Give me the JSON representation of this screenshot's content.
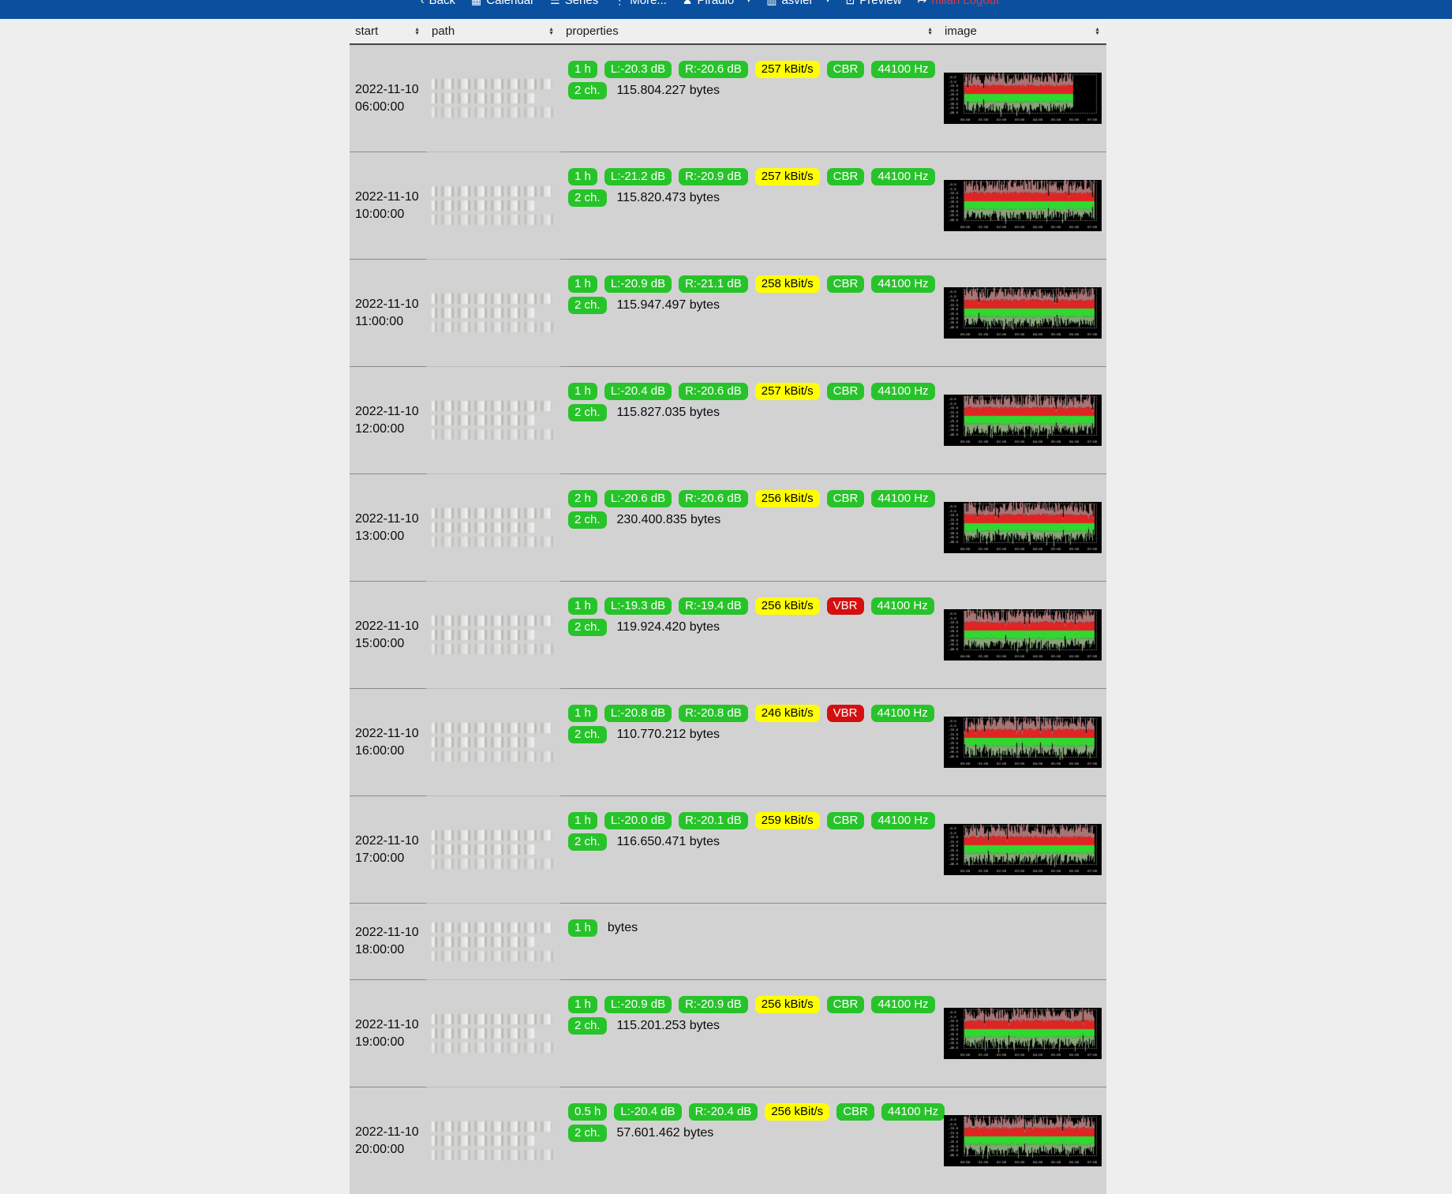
{
  "navbar": {
    "items": [
      {
        "label": "Back",
        "icon": "back-arrow",
        "glyph": "‹"
      },
      {
        "label": "Calendar",
        "icon": "calendar",
        "glyph": "▦"
      },
      {
        "label": "Series",
        "icon": "series-list",
        "glyph": "☰"
      },
      {
        "label": "More...",
        "icon": "more-dots",
        "glyph": "⋮"
      },
      {
        "label": "Piradio",
        "icon": "user",
        "glyph": "♟",
        "caret": true
      },
      {
        "label": "asvier",
        "icon": "server",
        "glyph": "▥",
        "caret": true
      },
      {
        "label": "Preview",
        "icon": "preview",
        "glyph": "⊡"
      },
      {
        "label": "milan Logout",
        "icon": "logout",
        "glyph": "↦",
        "danger": true
      }
    ]
  },
  "table": {
    "columns": [
      {
        "label": "start",
        "sortable": true
      },
      {
        "label": "path",
        "sortable": true
      },
      {
        "label": "properties",
        "sortable": true
      },
      {
        "label": "image",
        "sortable": true
      }
    ],
    "rows": [
      {
        "start_date": "2022-11-10",
        "start_time": "06:00:00",
        "path_redacted": true,
        "duration": "1 h",
        "level_left": "L:-20.3 dB",
        "level_right": "R:-20.6 dB",
        "bitrate": "257 kBit/s",
        "mode": "CBR",
        "samplerate": "44100 Hz",
        "channels": "2 ch.",
        "bytes": "115.804.227 bytes",
        "has_image": true,
        "image_kind": "stereo-level-waveform",
        "waveform_fill": 0.82
      },
      {
        "start_date": "2022-11-10",
        "start_time": "10:00:00",
        "path_redacted": true,
        "duration": "1 h",
        "level_left": "L:-21.2 dB",
        "level_right": "R:-20.9 dB",
        "bitrate": "257 kBit/s",
        "mode": "CBR",
        "samplerate": "44100 Hz",
        "channels": "2 ch.",
        "bytes": "115.820.473 bytes",
        "has_image": true,
        "image_kind": "stereo-level-waveform",
        "waveform_fill": 0.98
      },
      {
        "start_date": "2022-11-10",
        "start_time": "11:00:00",
        "path_redacted": true,
        "duration": "1 h",
        "level_left": "L:-20.9 dB",
        "level_right": "R:-21.1 dB",
        "bitrate": "258 kBit/s",
        "mode": "CBR",
        "samplerate": "44100 Hz",
        "channels": "2 ch.",
        "bytes": "115.947.497 bytes",
        "has_image": true,
        "image_kind": "stereo-level-waveform",
        "waveform_fill": 0.98
      },
      {
        "start_date": "2022-11-10",
        "start_time": "12:00:00",
        "path_redacted": true,
        "duration": "1 h",
        "level_left": "L:-20.4 dB",
        "level_right": "R:-20.6 dB",
        "bitrate": "257 kBit/s",
        "mode": "CBR",
        "samplerate": "44100 Hz",
        "channels": "2 ch.",
        "bytes": "115.827.035 bytes",
        "has_image": true,
        "image_kind": "stereo-level-waveform",
        "waveform_fill": 0.98
      },
      {
        "start_date": "2022-11-10",
        "start_time": "13:00:00",
        "path_redacted": true,
        "duration": "2 h",
        "level_left": "L:-20.6 dB",
        "level_right": "R:-20.6 dB",
        "bitrate": "256 kBit/s",
        "mode": "CBR",
        "samplerate": "44100 Hz",
        "channels": "2 ch.",
        "bytes": "230.400.835 bytes",
        "has_image": true,
        "image_kind": "stereo-level-waveform",
        "waveform_fill": 0.98
      },
      {
        "start_date": "2022-11-10",
        "start_time": "15:00:00",
        "path_redacted": true,
        "duration": "1 h",
        "level_left": "L:-19.3 dB",
        "level_right": "R:-19.4 dB",
        "bitrate": "256 kBit/s",
        "mode": "VBR",
        "samplerate": "44100 Hz",
        "channels": "2 ch.",
        "bytes": "119.924.420 bytes",
        "has_image": true,
        "image_kind": "stereo-level-waveform",
        "waveform_fill": 0.98
      },
      {
        "start_date": "2022-11-10",
        "start_time": "16:00:00",
        "path_redacted": true,
        "duration": "1 h",
        "level_left": "L:-20.8 dB",
        "level_right": "R:-20.8 dB",
        "bitrate": "246 kBit/s",
        "mode": "VBR",
        "samplerate": "44100 Hz",
        "channels": "2 ch.",
        "bytes": "110.770.212 bytes",
        "has_image": true,
        "image_kind": "stereo-level-waveform",
        "waveform_fill": 0.98
      },
      {
        "start_date": "2022-11-10",
        "start_time": "17:00:00",
        "path_redacted": true,
        "duration": "1 h",
        "level_left": "L:-20.0 dB",
        "level_right": "R:-20.1 dB",
        "bitrate": "259 kBit/s",
        "mode": "CBR",
        "samplerate": "44100 Hz",
        "channels": "2 ch.",
        "bytes": "116.650.471 bytes",
        "has_image": true,
        "image_kind": "stereo-level-waveform",
        "waveform_fill": 0.98
      },
      {
        "start_date": "2022-11-10",
        "start_time": "18:00:00",
        "path_redacted": true,
        "duration": "1 h",
        "level_left": null,
        "level_right": null,
        "bitrate": null,
        "mode": null,
        "samplerate": null,
        "channels": null,
        "bytes": "bytes",
        "has_image": false,
        "short_row": true
      },
      {
        "start_date": "2022-11-10",
        "start_time": "19:00:00",
        "path_redacted": true,
        "duration": "1 h",
        "level_left": "L:-20.9 dB",
        "level_right": "R:-20.9 dB",
        "bitrate": "256 kBit/s",
        "mode": "CBR",
        "samplerate": "44100 Hz",
        "channels": "2 ch.",
        "bytes": "115.201.253 bytes",
        "has_image": true,
        "image_kind": "stereo-level-waveform",
        "waveform_fill": 0.98
      },
      {
        "start_date": "2022-11-10",
        "start_time": "20:00:00",
        "path_redacted": true,
        "duration": "0.5 h",
        "level_left": "L:-20.4 dB",
        "level_right": "R:-20.4 dB",
        "bitrate": "256 kBit/s",
        "mode": "CBR",
        "samplerate": "44100 Hz",
        "channels": "2 ch.",
        "bytes": "57.601.462 bytes",
        "has_image": true,
        "image_kind": "stereo-level-waveform",
        "waveform_fill": 0.98
      }
    ]
  },
  "colors": {
    "navbar_bg": "#0b509f",
    "navbar_link": "#ffffff",
    "logout_link": "#d8394c",
    "badge_ok_green": "#27c32a",
    "badge_bitrate_yellow": "#ffff00",
    "badge_vbr_red": "#d50f0f",
    "row_bg": "#d2d2d2",
    "header_bg": "#efefef",
    "page_bg": "#eeeeee",
    "wave_red_bright": "#e02424",
    "wave_red_muted": "#a87474",
    "wave_green_bright": "#30d830",
    "wave_green_muted": "#85a578"
  }
}
